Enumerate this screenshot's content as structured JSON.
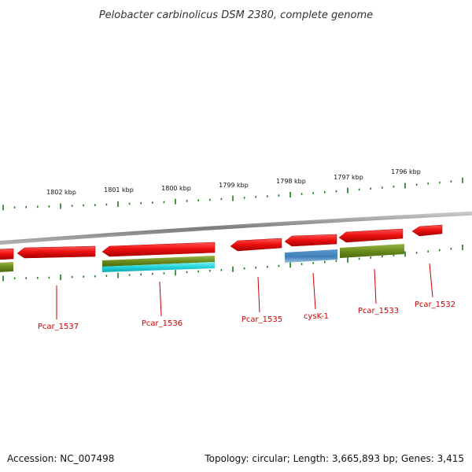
{
  "title": "Pelobacter carbinolicus DSM 2380, complete genome",
  "colors": {
    "background": "#ffffff",
    "backbone": "#8c8c8c",
    "tick": "#1a7a1a",
    "cds": "#ee1111",
    "gene_label": "#cc0000",
    "olive": "#6b8c1e",
    "cyan": "#22d4dc",
    "blue": "#3f7fb8"
  },
  "scale_labels": [
    "1802 kbp",
    "1801 kbp",
    "1800 kbp",
    "1799 kbp",
    "1798 kbp",
    "1797 kbp",
    "1796 kbp"
  ],
  "gene_labels": [
    "Pcar_1537",
    "Pcar_1536",
    "Pcar_1535",
    "cysK-1",
    "Pcar_1533",
    "Pcar_1532"
  ],
  "footer": {
    "accession": "Accession: NC_007498",
    "summary": "Topology: circular; Length: 3,665,893 bp; Genes: 3,415"
  }
}
